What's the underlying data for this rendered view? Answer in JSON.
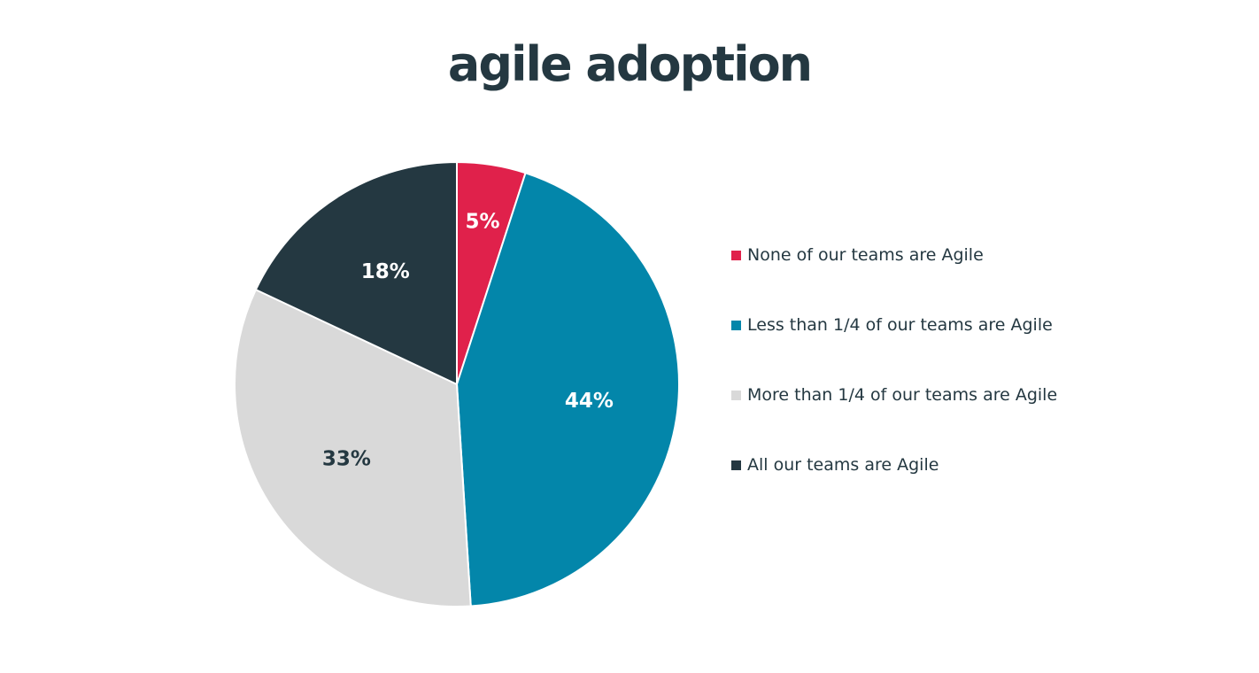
{
  "chart_data": {
    "type": "pie",
    "title": "agile adoption",
    "categories": [
      "None of our teams are Agile",
      "Less than 1/4 of our teams are Agile",
      "More than 1/4 of our teams are Agile",
      "All our teams are Agile"
    ],
    "values": [
      5,
      44,
      33,
      18
    ],
    "value_labels": [
      "5%",
      "44%",
      "33%",
      "18%"
    ],
    "colors": [
      "#e0214b",
      "#0386aa",
      "#d9d9d9",
      "#243841"
    ],
    "label_colors": [
      "#ffffff",
      "#ffffff",
      "#243841",
      "#ffffff"
    ],
    "legend_position": "right"
  }
}
